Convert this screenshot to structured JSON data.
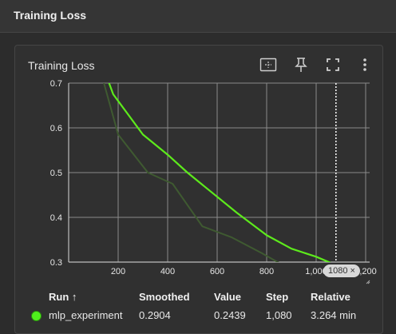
{
  "section": {
    "title": "Training Loss"
  },
  "card": {
    "title": "Training Loss",
    "toolbar": [
      "fit-domain-icon",
      "pin-icon",
      "fullscreen-icon",
      "more-vert-icon"
    ]
  },
  "chart_data": {
    "type": "line",
    "xlim": [
      0,
      1200
    ],
    "ylim": [
      0.3,
      0.7
    ],
    "x_ticks": [
      0,
      200,
      400,
      600,
      800,
      1000,
      1200
    ],
    "y_ticks": [
      0.3,
      0.4,
      0.5,
      0.6,
      0.7
    ],
    "x_tick_labels": [
      "",
      "200",
      "400",
      "600",
      "800",
      "1,000",
      "1,200"
    ],
    "y_tick_labels": [
      "0.3",
      "0.4",
      "0.5",
      "0.6",
      "0.7"
    ],
    "grid": true,
    "step_marker": {
      "x": 1080,
      "label": "1080"
    },
    "series": [
      {
        "name": "mlp_experiment",
        "variant": "raw",
        "color": "#3f5a31",
        "x": [
          140,
          200,
          320,
          420,
          540,
          660,
          780,
          860,
          940,
          1020,
          1080
        ],
        "y": [
          0.705,
          0.585,
          0.5,
          0.475,
          0.38,
          0.355,
          0.32,
          0.295,
          0.27,
          0.255,
          0.244
        ]
      },
      {
        "name": "mlp_experiment",
        "variant": "smoothed",
        "color": "#5dea1c",
        "x": [
          160,
          180,
          300,
          400,
          480,
          580,
          680,
          800,
          900,
          1000,
          1060,
          1080
        ],
        "y": [
          0.705,
          0.675,
          0.585,
          0.54,
          0.5,
          0.455,
          0.41,
          0.36,
          0.33,
          0.312,
          0.298,
          0.29
        ]
      }
    ]
  },
  "table": {
    "headers": {
      "run": "Run ↑",
      "smoothed": "Smoothed",
      "value": "Value",
      "step": "Step",
      "relative": "Relative"
    },
    "rows": [
      {
        "run": "mlp_experiment",
        "smoothed": "0.2904",
        "value": "0.2439",
        "step": "1,080",
        "relative": "3.264 min",
        "color": "#4fef1c"
      }
    ]
  }
}
